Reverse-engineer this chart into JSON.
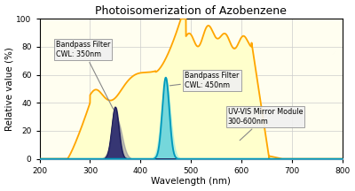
{
  "title": "Photoisomerization of Azobenzene",
  "xlabel": "Wavelength (nm)",
  "ylabel": "Relative value (%)",
  "xlim": [
    200,
    800
  ],
  "ylim": [
    0,
    100
  ],
  "xticks": [
    200,
    300,
    400,
    500,
    600,
    700,
    800
  ],
  "yticks": [
    0,
    20,
    40,
    60,
    80,
    100
  ],
  "bg_color": "#fffef0",
  "mirror_fill": "#ffffcc",
  "mirror_edge": "#FFA500",
  "bp350_fill_dark": "#2b2b6e",
  "bp350_fill_gray": "#8888aa",
  "bp450_fill": "#55ccdd",
  "bp450_fill_light": "#aaeedd",
  "bp450_edge": "#0099bb",
  "annotation_box_fc": "#f0f0f0",
  "annotation_box_ec": "#999999",
  "ann1_text": "Bandpass Filter\nCWL: 350nm",
  "ann2_text": "Bandpass Filter\nCWL: 450nm",
  "ann3_text": "UV-VIS Mirror Module\n300-600nm"
}
